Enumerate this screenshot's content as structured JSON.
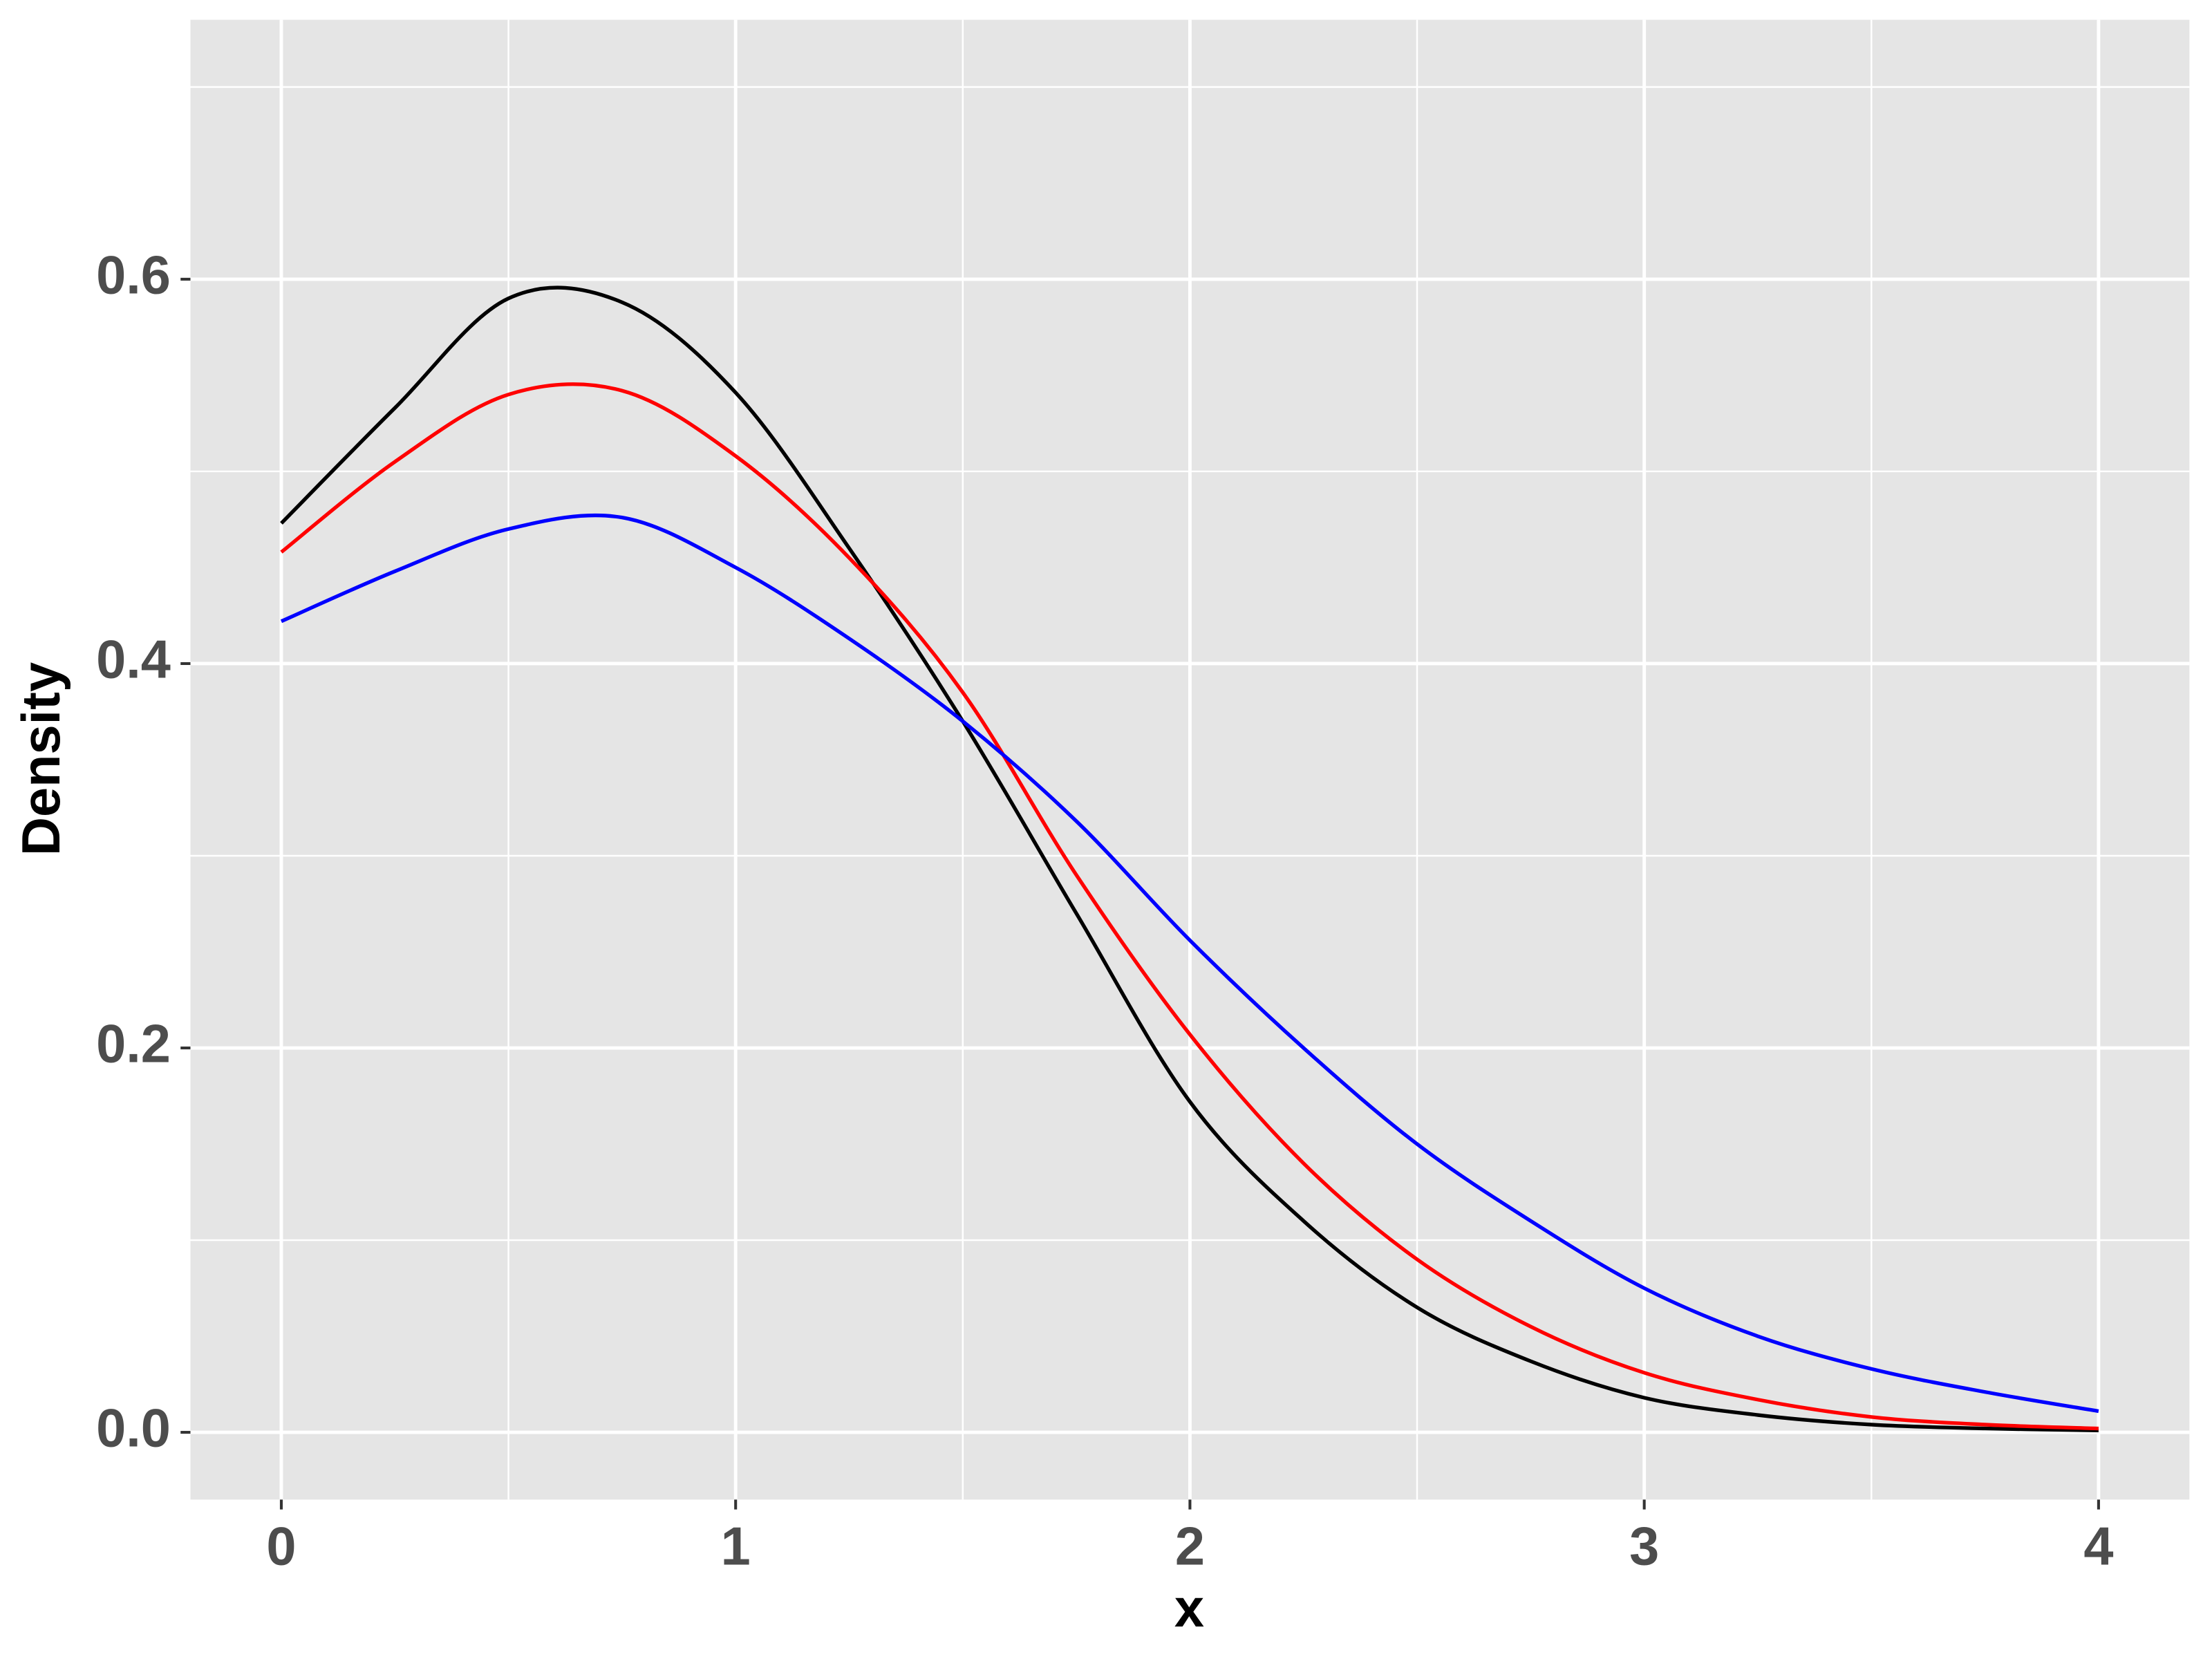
{
  "chart_data": {
    "type": "line",
    "x_label": "x",
    "y_label": "Density",
    "x": [
      0,
      0.25,
      0.5,
      0.75,
      1,
      1.25,
      1.5,
      1.75,
      2,
      2.25,
      2.5,
      2.75,
      3,
      3.25,
      3.5,
      3.75,
      4
    ],
    "series": [
      {
        "color": "#000000",
        "values": [
          0.473,
          0.533,
          0.59,
          0.588,
          0.541,
          0.46,
          0.37,
          0.27,
          0.172,
          0.11,
          0.065,
          0.037,
          0.018,
          0.009,
          0.004,
          0.002,
          0.001
        ]
      },
      {
        "color": "#ff0000",
        "values": [
          0.458,
          0.505,
          0.54,
          0.542,
          0.508,
          0.455,
          0.385,
          0.29,
          0.207,
          0.14,
          0.09,
          0.055,
          0.031,
          0.017,
          0.008,
          0.004,
          0.002
        ]
      },
      {
        "color": "#0000ff",
        "values": [
          0.422,
          0.448,
          0.47,
          0.476,
          0.45,
          0.413,
          0.37,
          0.318,
          0.256,
          0.2,
          0.15,
          0.11,
          0.075,
          0.05,
          0.033,
          0.021,
          0.011
        ]
      }
    ],
    "xlim": [
      -0.2,
      4.2
    ],
    "ylim": [
      -0.035,
      0.735
    ],
    "xticks": [
      0,
      1,
      2,
      3,
      4
    ],
    "yticks": [
      {
        "value": 0,
        "label": "0.0"
      },
      {
        "value": 0.2,
        "label": "0.2"
      },
      {
        "value": 0.4,
        "label": "0.4"
      },
      {
        "value": 0.6,
        "label": "0.6"
      }
    ],
    "x_minor_grid": [
      0.5,
      1.5,
      2.5,
      3.5
    ],
    "y_minor_grid": [
      0.1,
      0.3,
      0.5,
      0.7
    ],
    "grid": true,
    "panel_color": "#e5e5e5"
  }
}
